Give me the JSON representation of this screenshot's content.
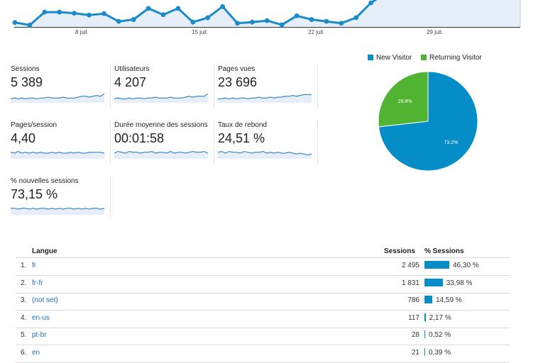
{
  "timeline": {
    "x_ticks": [
      "8 juil.",
      "15 juil.",
      "22 juil.",
      "29 juil."
    ],
    "values": [
      162,
      155,
      190,
      190,
      187,
      182,
      186,
      165,
      170,
      200,
      183,
      200,
      163,
      175,
      205,
      160,
      163,
      167,
      156,
      180,
      170,
      165,
      160,
      175,
      215
    ],
    "line_color": "#1a8ac8"
  },
  "metrics": [
    {
      "label": "Sessions",
      "value": "5 389",
      "spark": [
        3,
        4,
        3,
        4,
        3,
        4,
        4,
        3,
        4,
        4,
        5,
        4,
        4,
        4,
        5,
        4,
        4,
        4,
        5,
        6,
        6,
        5,
        6,
        7,
        6,
        9
      ]
    },
    {
      "label": "Utilisateurs",
      "value": "4 207",
      "spark": [
        3,
        4,
        3,
        3,
        4,
        3,
        4,
        4,
        3,
        4,
        4,
        5,
        4,
        4,
        4,
        5,
        4,
        4,
        4,
        5,
        6,
        5,
        6,
        6,
        6,
        9
      ]
    },
    {
      "label": "Pages vues",
      "value": "23 696",
      "spark": [
        3,
        3,
        4,
        3,
        4,
        3,
        4,
        4,
        3,
        4,
        4,
        5,
        4,
        4,
        5,
        4,
        5,
        5,
        6,
        6,
        7,
        6,
        7,
        8,
        8,
        8
      ]
    },
    {
      "label": "Pages/session",
      "value": "4,40",
      "spark": [
        6,
        5,
        7,
        5,
        6,
        5,
        6,
        5,
        6,
        5,
        5,
        6,
        5,
        6,
        5,
        5,
        6,
        5,
        6,
        5,
        5,
        6,
        6,
        6,
        6,
        5
      ]
    },
    {
      "label": "Durée moyenne des sessions",
      "value": "00:01:58",
      "spark": [
        5,
        7,
        6,
        5,
        7,
        6,
        6,
        5,
        6,
        6,
        7,
        5,
        6,
        6,
        5,
        7,
        5,
        6,
        6,
        5,
        6,
        7,
        6,
        6,
        7,
        5
      ]
    },
    {
      "label": "Taux de rebond",
      "value": "24,51 %",
      "spark": [
        6,
        7,
        5,
        7,
        6,
        6,
        5,
        7,
        6,
        5,
        6,
        6,
        7,
        5,
        6,
        5,
        6,
        5,
        5,
        6,
        5,
        4,
        5,
        4,
        3,
        4
      ]
    },
    {
      "label": "% nouvelles sessions",
      "value": "73,15 %",
      "spark": [
        6,
        6,
        5,
        6,
        6,
        5,
        6,
        5,
        6,
        6,
        5,
        6,
        5,
        6,
        5,
        6,
        6,
        5,
        6,
        5,
        6,
        5,
        6,
        6,
        5,
        6
      ]
    }
  ],
  "pie": {
    "legend": [
      {
        "label": "New Visitor",
        "color": "#058dc7"
      },
      {
        "label": "Returning Visitor",
        "color": "#50b432"
      }
    ],
    "slices": [
      {
        "name": "New Visitor",
        "value": 73.2,
        "label": "73.2%",
        "color": "#058dc7"
      },
      {
        "name": "Returning Visitor",
        "value": 26.8,
        "label": "26.8%",
        "color": "#50b432"
      }
    ]
  },
  "table": {
    "headers": {
      "lang": "Langue",
      "sessions": "Sessions",
      "pct": "% Sessions"
    },
    "rows": [
      {
        "num": "1.",
        "lang": "fr",
        "sessions": "2 495",
        "pct": "46,30 %",
        "pct_value": 46.3
      },
      {
        "num": "2.",
        "lang": "fr-fr",
        "sessions": "1 831",
        "pct": "33,98 %",
        "pct_value": 33.98
      },
      {
        "num": "3.",
        "lang": "(not set)",
        "sessions": "786",
        "pct": "14,59 %",
        "pct_value": 14.59
      },
      {
        "num": "4.",
        "lang": "en-us",
        "sessions": "117",
        "pct": "2,17 %",
        "pct_value": 2.17
      },
      {
        "num": "5.",
        "lang": "pt-br",
        "sessions": "28",
        "pct": "0,52 %",
        "pct_value": 0.52
      },
      {
        "num": "6.",
        "lang": "en",
        "sessions": "21",
        "pct": "0,39 %",
        "pct_value": 0.39
      }
    ]
  }
}
